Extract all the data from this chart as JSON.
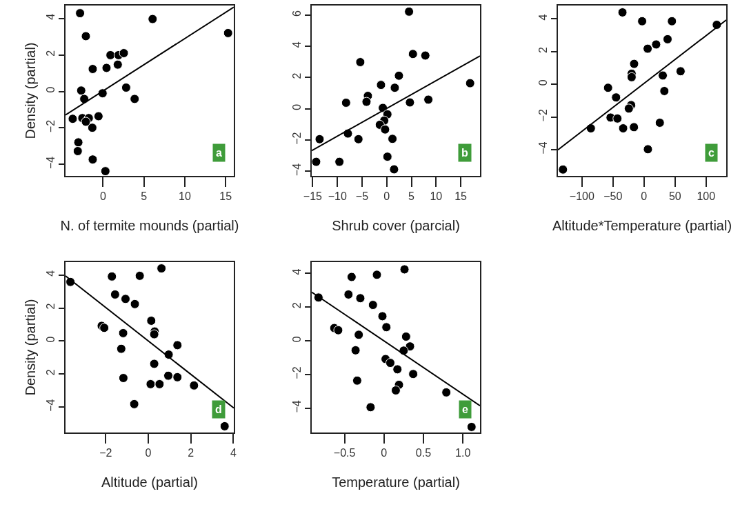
{
  "chart_data": [
    {
      "type": "scatter",
      "xlabel": "N. of termite mounds (partial)",
      "ylabel": "Density (partial)",
      "annotations": [
        "a"
      ],
      "grid": false,
      "xlim": [
        -4.6,
        16.0
      ],
      "ylim": [
        -4.63,
        4.71
      ],
      "xticks": [
        0,
        5,
        10,
        15
      ],
      "yticks": [
        -4,
        -2,
        0,
        2,
        4
      ],
      "series": [
        {
          "color": "#000000",
          "marker": "circle",
          "x": [
            -2.82,
            -2.11,
            6.06,
            15.3,
            0.9,
            1.89,
            2.54,
            1.8,
            0.42,
            -1.27,
            -2.68,
            -2.31,
            -0.06,
            2.82,
            3.86,
            -3.72,
            -2.54,
            -1.75,
            -2.11,
            -0.56,
            -1.32,
            -3.03,
            -3.1,
            -1.27,
            0.28
          ],
          "values": [
            4.29,
            3.03,
            3.97,
            3.2,
            1.99,
            1.99,
            2.1,
            1.47,
            1.29,
            1.23,
            0.05,
            -0.41,
            -0.1,
            0.21,
            -0.41,
            -1.5,
            -1.46,
            -1.46,
            -1.66,
            -1.36,
            -1.99,
            -2.79,
            -3.27,
            -3.73,
            -4.37
          ]
        },
        {
          "type": "line",
          "marker": "none",
          "color": "#000000",
          "x": [
            -4.6,
            16.0
          ],
          "values": [
            -1.29,
            4.62
          ]
        }
      ]
    },
    {
      "type": "scatter",
      "xlabel": "Shrub cover (parcial)",
      "annotations": [
        "b"
      ],
      "grid": false,
      "xlim": [
        -15.2,
        18.9
      ],
      "ylim": [
        -4.29,
        6.61
      ],
      "xticks": [
        -15,
        -10,
        -5,
        0,
        5,
        10,
        15
      ],
      "yticks": [
        -4,
        -2,
        0,
        2,
        4,
        6
      ],
      "series": [
        {
          "color": "#000000",
          "marker": "circle",
          "x": [
            4.52,
            5.31,
            7.82,
            -5.36,
            2.47,
            -1.16,
            1.63,
            16.9,
            -3.82,
            -4.1,
            -8.24,
            4.7,
            8.43,
            -0.79,
            0.14,
            -0.51,
            -1.4,
            -0.33,
            -13.6,
            -7.87,
            -5.73,
            1.16,
            0.14,
            -14.3,
            -9.59,
            1.49
          ],
          "values": [
            6.22,
            3.51,
            3.41,
            2.99,
            2.12,
            1.53,
            1.35,
            1.64,
            0.83,
            0.45,
            0.39,
            0.41,
            0.59,
            0.06,
            -0.35,
            -0.75,
            -1.02,
            -1.32,
            -1.94,
            -1.58,
            -1.94,
            -1.92,
            -3.06,
            -3.39,
            -3.39,
            -3.87
          ]
        },
        {
          "type": "line",
          "marker": "none",
          "color": "#000000",
          "x": [
            -15.2,
            18.9
          ],
          "values": [
            -2.67,
            3.38
          ]
        }
      ]
    },
    {
      "type": "scatter",
      "xlabel": "Altitude*Temperature (partial)",
      "annotations": [
        "c"
      ],
      "grid": false,
      "xlim": [
        -138.7,
        132.5
      ],
      "ylim": [
        -5.6,
        4.82
      ],
      "xticks": [
        -100,
        -50,
        0,
        50,
        100
      ],
      "yticks": [
        -4,
        -2,
        0,
        2,
        4
      ],
      "series": [
        {
          "color": "#000000",
          "marker": "circle",
          "x": [
            -34.7,
            -3.0,
            45.0,
            117.3,
            38.0,
            19.6,
            5.9,
            -15.9,
            -19.9,
            -19.9,
            59.0,
            30.3,
            32.8,
            -57.9,
            -45.0,
            -20.7,
            -24.4,
            -53.9,
            -42.8,
            -85.6,
            -33.6,
            -16.2,
            25.5,
            6.3,
            -130.6
          ],
          "values": [
            4.4,
            3.86,
            3.86,
            3.64,
            2.76,
            2.44,
            2.18,
            1.25,
            0.65,
            0.44,
            0.8,
            0.54,
            -0.41,
            -0.21,
            -0.8,
            -1.27,
            -1.48,
            -2.03,
            -2.09,
            -2.69,
            -2.69,
            -2.62,
            -2.35,
            -3.97,
            -5.21
          ]
        },
        {
          "type": "line",
          "marker": "none",
          "color": "#000000",
          "x": [
            -138.7,
            132.5
          ],
          "values": [
            -4.01,
            3.93
          ]
        }
      ]
    },
    {
      "type": "scatter",
      "xlabel": "Altitude (partial)",
      "ylabel": "Density (partial)",
      "annotations": [
        "d"
      ],
      "grid": false,
      "xlim": [
        -3.89,
        4.02
      ],
      "ylim": [
        -5.54,
        4.78
      ],
      "xticks": [
        -2,
        0,
        2,
        4
      ],
      "yticks": [
        -4,
        {
          "value": -2,
          "label": "2"
        },
        0,
        2,
        4
      ],
      "series": [
        {
          "color": "#000000",
          "marker": "circle",
          "x": [
            0.62,
            -1.71,
            -0.4,
            -3.66,
            -1.56,
            -1.07,
            -0.63,
            0.14,
            0.3,
            0.28,
            -2.19,
            -2.07,
            -1.18,
            1.37,
            -1.27,
            0.96,
            0.28,
            -1.17,
            0.94,
            1.37,
            0.11,
            0.53,
            2.15,
            -0.66,
            3.59
          ],
          "values": [
            4.4,
            3.91,
            3.95,
            3.58,
            2.82,
            2.55,
            2.24,
            1.23,
            0.58,
            0.41,
            0.92,
            0.8,
            0.48,
            -0.25,
            -0.47,
            -0.82,
            -1.38,
            -2.24,
            -2.1,
            -2.19,
            -2.61,
            -2.61,
            -2.69,
            -3.82,
            -5.16
          ]
        },
        {
          "type": "line",
          "marker": "none",
          "color": "#000000",
          "x": [
            -3.89,
            4.02
          ],
          "values": [
            3.94,
            -4.06
          ]
        }
      ]
    },
    {
      "type": "scatter",
      "xlabel": "Temperature (partial)",
      "annotations": [
        "e"
      ],
      "grid": false,
      "xlim": [
        -0.916,
        1.217
      ],
      "ylim": [
        -5.44,
        4.67
      ],
      "xticks": [
        -0.5,
        0,
        0.5,
        {
          "value": 1,
          "label": "1.0"
        }
      ],
      "yticks": [
        -4,
        -2,
        0,
        2,
        4
      ],
      "series": [
        {
          "color": "#000000",
          "marker": "circle",
          "x": [
            0.26,
            -0.41,
            -0.09,
            -0.83,
            -0.45,
            -0.3,
            -0.14,
            -0.02,
            0.03,
            -0.63,
            -0.58,
            -0.32,
            0.28,
            0.33,
            -0.36,
            0.25,
            0.02,
            0.08,
            0.17,
            0.37,
            -0.34,
            0.19,
            0.15,
            0.79,
            -0.17,
            1.11
          ],
          "values": [
            4.24,
            3.79,
            3.92,
            2.57,
            2.75,
            2.53,
            2.13,
            1.46,
            0.81,
            0.76,
            0.63,
            0.36,
            0.25,
            -0.33,
            -0.56,
            -0.58,
            -1.08,
            -1.31,
            -1.69,
            -1.97,
            -2.36,
            -2.61,
            -2.94,
            -3.06,
            -3.94,
            -5.11
          ]
        },
        {
          "type": "line",
          "marker": "none",
          "color": "#000000",
          "x": [
            -0.916,
            1.217
          ],
          "values": [
            2.89,
            -3.85
          ]
        }
      ]
    }
  ]
}
